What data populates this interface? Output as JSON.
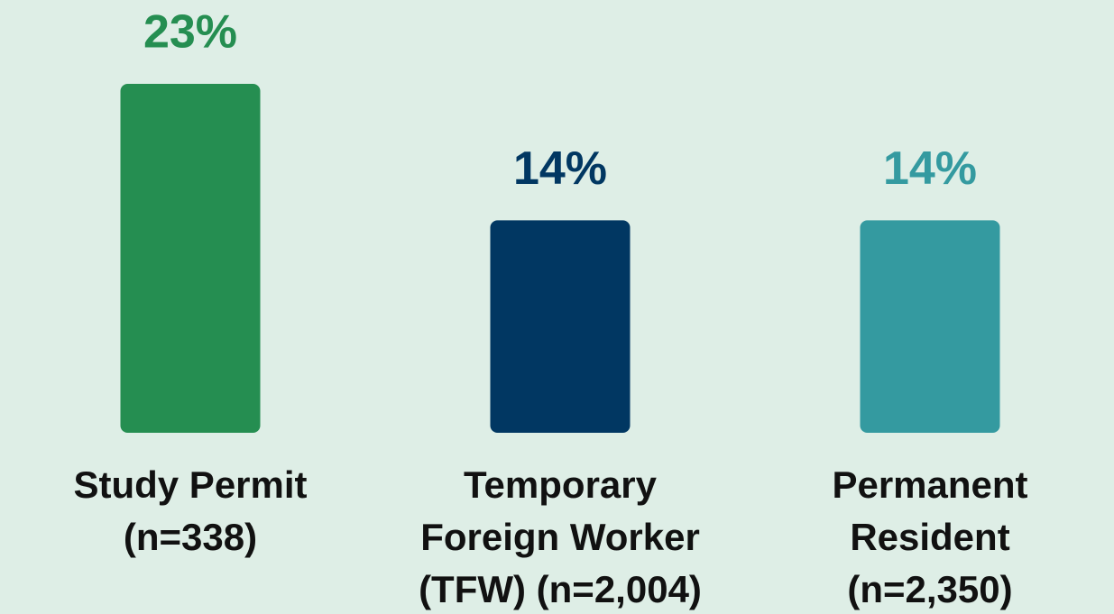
{
  "chart_data": {
    "type": "bar",
    "categories": [
      [
        "Study Permit",
        "(n=338)"
      ],
      [
        "Temporary",
        "Foreign Worker",
        "(TFW) (n=2,004)"
      ],
      [
        "Permanent",
        "Resident",
        "(n=2,350)"
      ]
    ],
    "values": [
      23,
      14,
      14
    ],
    "value_labels": [
      "23%",
      "14%",
      "14%"
    ],
    "colors": [
      "#258e51",
      "#013762",
      "#349aa0"
    ]
  }
}
